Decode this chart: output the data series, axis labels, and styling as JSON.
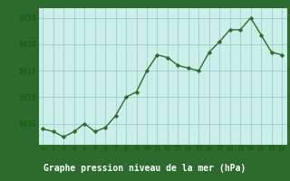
{
  "x": [
    0,
    1,
    2,
    3,
    4,
    5,
    6,
    7,
    8,
    9,
    10,
    11,
    12,
    13,
    14,
    15,
    16,
    17,
    18,
    19,
    20,
    21,
    22,
    23
  ],
  "y": [
    1014.8,
    1014.7,
    1014.5,
    1014.7,
    1015.0,
    1014.7,
    1014.85,
    1015.3,
    1016.0,
    1016.2,
    1017.0,
    1017.6,
    1017.5,
    1017.2,
    1017.1,
    1017.0,
    1017.7,
    1018.1,
    1018.55,
    1018.55,
    1019.0,
    1018.35,
    1017.7,
    1017.6
  ],
  "line_color": "#2d6a2d",
  "marker_color": "#2d6a2d",
  "bg_color": "#cceee8",
  "grid_color": "#99cccc",
  "xlabel": "Graphe pression niveau de la mer (hPa)",
  "xlabel_color": "#1a5c1a",
  "tick_label_color": "#1a5c1a",
  "ylim": [
    1014.2,
    1019.4
  ],
  "yticks": [
    1015,
    1016,
    1017,
    1018,
    1019
  ],
  "xticks": [
    0,
    1,
    2,
    3,
    4,
    5,
    6,
    7,
    8,
    9,
    10,
    11,
    12,
    13,
    14,
    15,
    16,
    17,
    18,
    19,
    20,
    21,
    22,
    23
  ],
  "fig_bg_color": "#2d6a2d",
  "border_color": "#2d6a2d",
  "bottom_bar_color": "#2d6a2d"
}
